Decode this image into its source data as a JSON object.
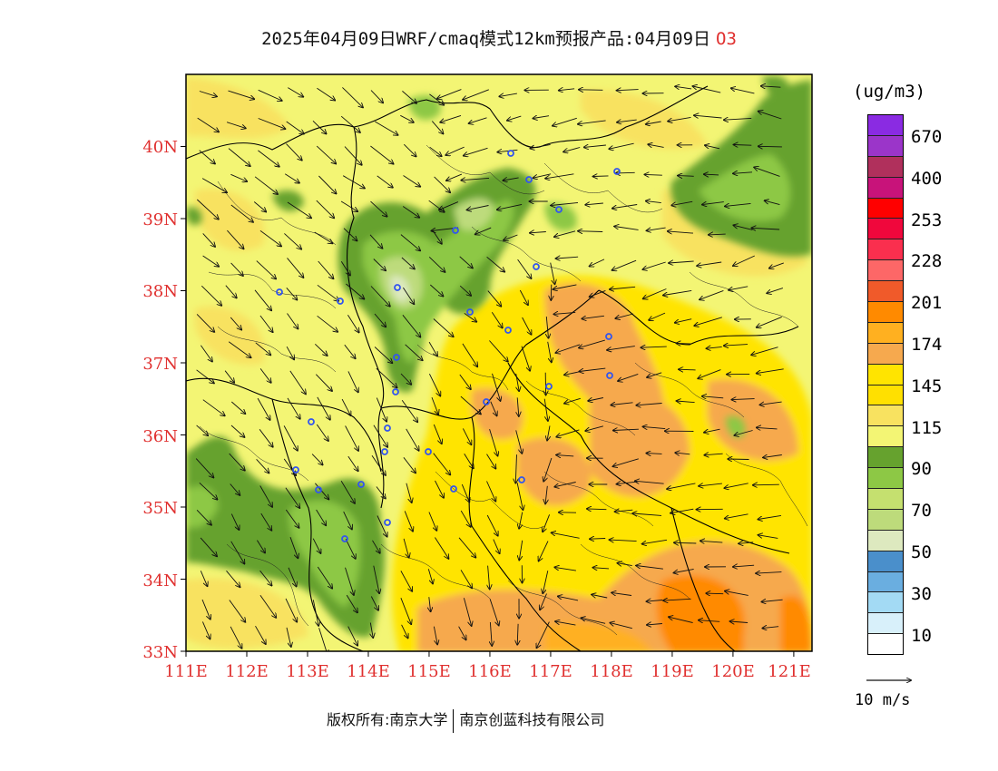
{
  "title": {
    "text": "2025年04月09日WRF/cmaq模式12km预报产品:04月09日",
    "species": "O3"
  },
  "units": "(ug/m3)",
  "colors": {
    "axis_label": "#e0302f",
    "frame": "#000000",
    "station": "#3355ee",
    "base_field": "#f3f574"
  },
  "axes": {
    "lon_labels": [
      "111E",
      "112E",
      "113E",
      "114E",
      "115E",
      "116E",
      "117E",
      "118E",
      "119E",
      "120E",
      "121E"
    ],
    "lon_values": [
      111,
      112,
      113,
      114,
      115,
      116,
      117,
      118,
      119,
      120,
      121
    ],
    "lat_labels": [
      "40N",
      "39N",
      "38N",
      "37N",
      "36N",
      "35N",
      "34N",
      "33N"
    ],
    "lat_values": [
      40,
      39,
      38,
      37,
      36,
      35,
      34,
      33
    ],
    "lon_range": [
      111,
      121.3
    ],
    "lat_range": [
      33,
      41
    ]
  },
  "colorbar": {
    "levels": [
      {
        "color": "#8a2be2",
        "label": "670"
      },
      {
        "color": "#9b35c9",
        "label": ""
      },
      {
        "color": "#b0305c",
        "label": "400"
      },
      {
        "color": "#c8137a",
        "label": ""
      },
      {
        "color": "#ff0000",
        "label": "253"
      },
      {
        "color": "#f0073c",
        "label": ""
      },
      {
        "color": "#fa2f4e",
        "label": "228"
      },
      {
        "color": "#fd6767",
        "label": ""
      },
      {
        "color": "#f05a2a",
        "label": "201"
      },
      {
        "color": "#ff8a00",
        "label": ""
      },
      {
        "color": "#ffb020",
        "label": "174"
      },
      {
        "color": "#f6a94e",
        "label": ""
      },
      {
        "color": "#ffe400",
        "label": "145"
      },
      {
        "color": "#ffe000",
        "label": ""
      },
      {
        "color": "#f8e260",
        "label": "115"
      },
      {
        "color": "#f3f574",
        "label": ""
      },
      {
        "color": "#66a22e",
        "label": "90"
      },
      {
        "color": "#8dc845",
        "label": ""
      },
      {
        "color": "#c5e06f",
        "label": "70"
      },
      {
        "color": "#bddb7b",
        "label": ""
      },
      {
        "color": "#dde9bf",
        "label": "50"
      },
      {
        "color": "#4a8fcb",
        "label": ""
      },
      {
        "color": "#6aaee0",
        "label": "30"
      },
      {
        "color": "#a3daf4",
        "label": ""
      },
      {
        "color": "#d8f0fa",
        "label": "10"
      },
      {
        "color": "#ffffff",
        "label": ""
      }
    ]
  },
  "wind_scale": {
    "text": "10 m/s"
  },
  "footer": {
    "left": "版权所有:南京大学",
    "right": "南京创蓝科技有限公司"
  }
}
